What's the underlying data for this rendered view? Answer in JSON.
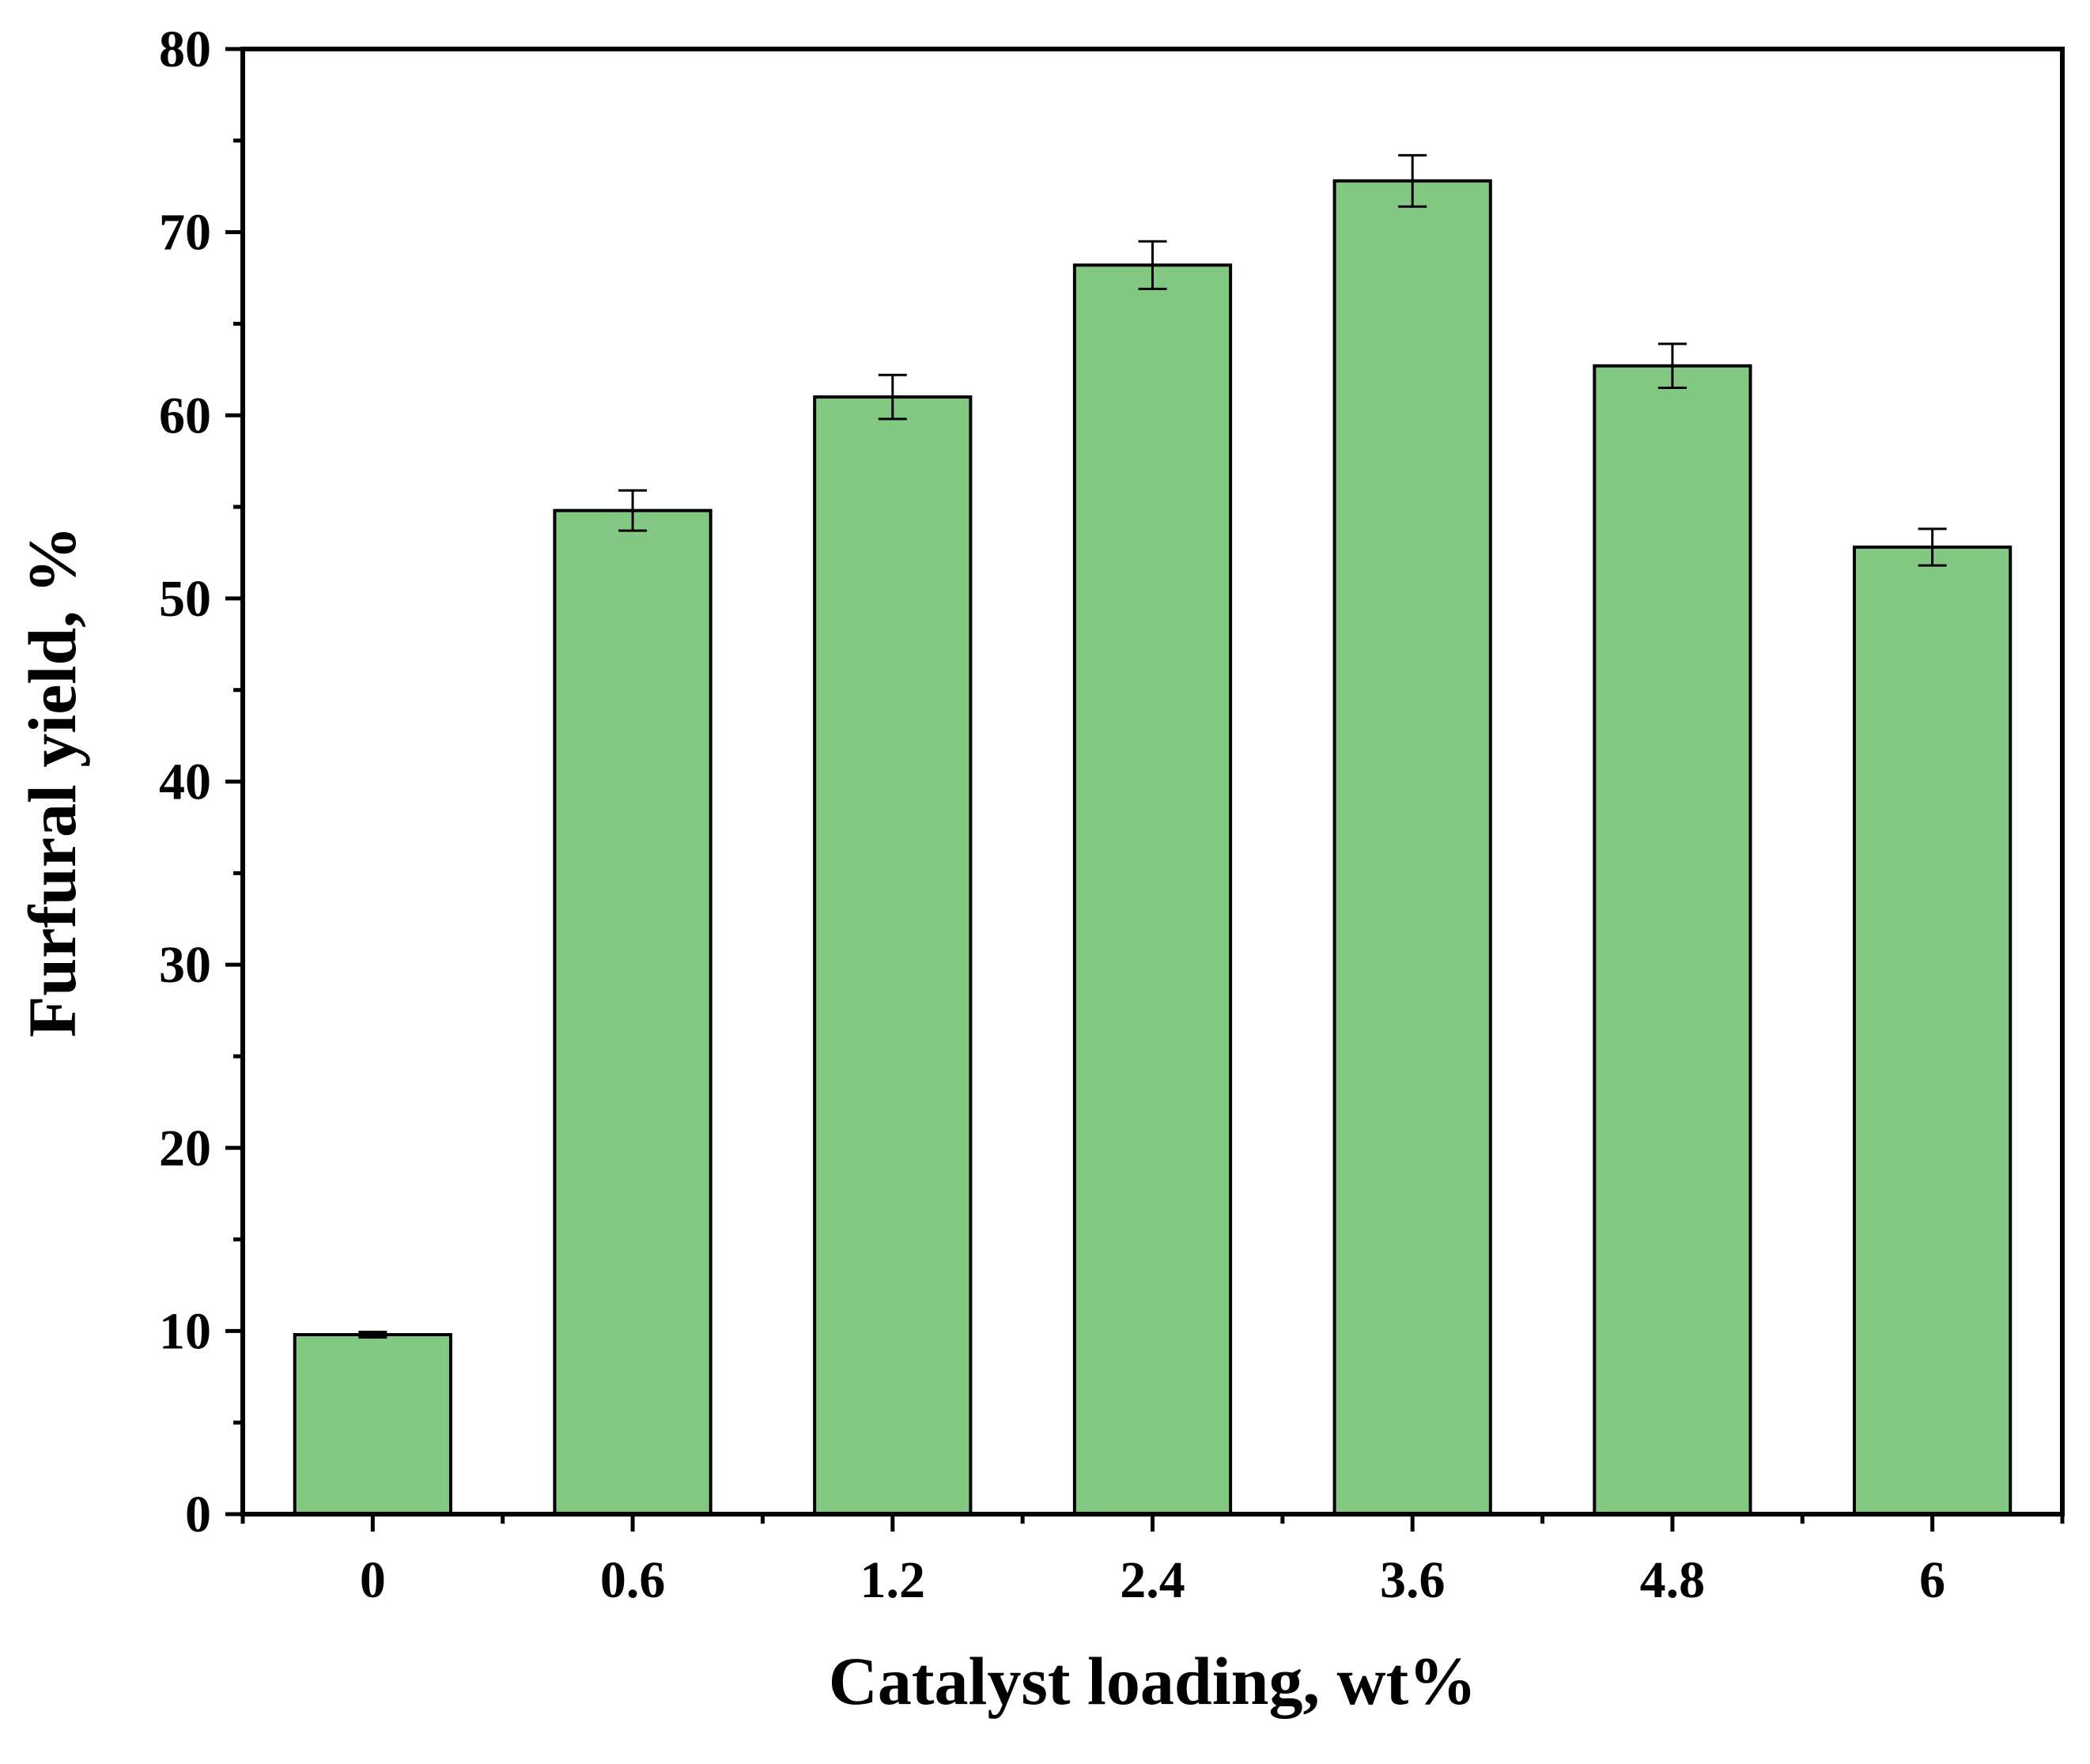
{
  "chart_data": {
    "type": "bar",
    "title": "",
    "xlabel": "Catalyst loading, wt%",
    "ylabel": "Furfural yield, %",
    "categories": [
      "0",
      "0.6",
      "1.2",
      "2.4",
      "3.6",
      "4.8",
      "6"
    ],
    "values": [
      9.8,
      54.8,
      61.0,
      68.2,
      72.8,
      62.7,
      52.8
    ],
    "errors": [
      0.15,
      1.1,
      1.2,
      1.3,
      1.4,
      1.2,
      1.0
    ],
    "ylim": [
      0,
      80
    ],
    "yticks": [
      0,
      10,
      20,
      30,
      40,
      50,
      60,
      70,
      80
    ],
    "ytick_labels": [
      "0",
      "10",
      "20",
      "30",
      "40",
      "50",
      "60",
      "70",
      "80"
    ],
    "grid": false,
    "legend": "none",
    "colors": {
      "bar_fill": "#84c983",
      "bar_edge": "#000000",
      "axis": "#000000"
    }
  }
}
